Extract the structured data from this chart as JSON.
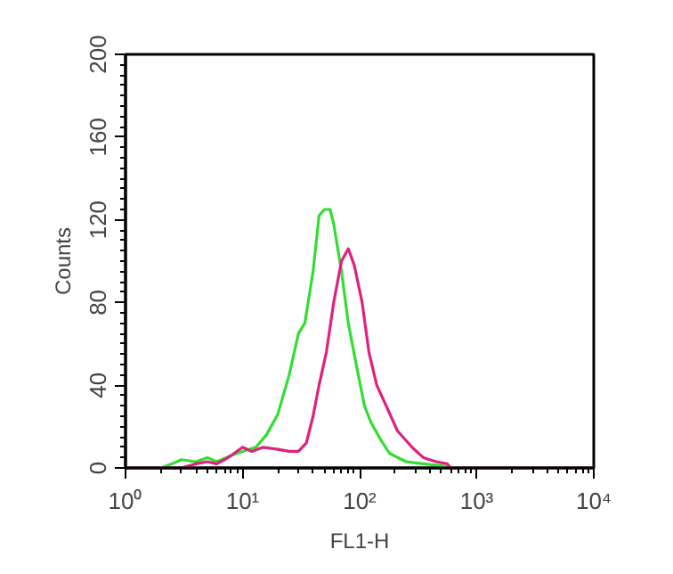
{
  "chart_data": {
    "type": "line",
    "xlabel": "FL1-H",
    "ylabel": "Counts",
    "log": "x",
    "grid": false,
    "marker": "none",
    "line_style": "solid",
    "xlim": [
      1,
      10000
    ],
    "ylim": [
      0,
      200
    ],
    "xticks": [
      {
        "value": 1,
        "label": "10⁰"
      },
      {
        "value": 10,
        "label": "10¹"
      },
      {
        "value": 100,
        "label": "10²"
      },
      {
        "value": 1000,
        "label": "10³"
      },
      {
        "value": 10000,
        "label": "10⁴"
      }
    ],
    "yticks": [
      0,
      40,
      80,
      120,
      160,
      200
    ],
    "series": [
      {
        "color": "#33dd33",
        "x": [
          1,
          2,
          2.5,
          3,
          4,
          5,
          6,
          8,
          10,
          13,
          16,
          20,
          25,
          30,
          34,
          40,
          45,
          50,
          56,
          60,
          70,
          80,
          95,
          110,
          125,
          150,
          180,
          250,
          350,
          500,
          600,
          10000
        ],
        "values": [
          0,
          0,
          2,
          4,
          3,
          5,
          3,
          6,
          8,
          10,
          16,
          26,
          45,
          65,
          70,
          95,
          122,
          125,
          125,
          118,
          95,
          70,
          48,
          30,
          22,
          14,
          7,
          3,
          2,
          1,
          0,
          0
        ]
      },
      {
        "color": "#e0207f",
        "x": [
          1,
          3,
          4,
          5,
          6,
          7,
          8,
          10,
          12,
          15,
          20,
          25,
          30,
          35,
          40,
          45,
          52,
          60,
          70,
          80,
          90,
          105,
          120,
          140,
          175,
          210,
          280,
          350,
          450,
          560,
          600,
          10000
        ],
        "values": [
          0,
          0,
          2,
          3,
          2,
          4,
          6,
          10,
          8,
          10,
          9,
          8,
          8,
          12,
          25,
          40,
          56,
          80,
          100,
          106,
          98,
          80,
          56,
          40,
          28,
          18,
          10,
          5,
          3,
          2,
          0,
          0
        ]
      }
    ]
  }
}
